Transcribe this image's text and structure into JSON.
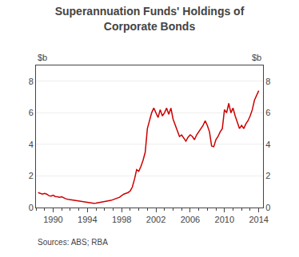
{
  "chart_data": {
    "type": "line",
    "title": "Superannuation Funds' Holdings of\nCorporate Bonds",
    "ylabel": "$b",
    "y2label": "$b",
    "annotations": [
      "Sources: ABS; RBA"
    ],
    "color": "#cc0000",
    "grid": true,
    "xlim": [
      1988.0,
      2014.5
    ],
    "xticks": [
      1990,
      1994,
      1998,
      2002,
      2006,
      2010,
      2014
    ],
    "ylim": [
      0,
      9
    ],
    "yticks": [
      0,
      2,
      4,
      6,
      8
    ],
    "y2lim": [
      0,
      9
    ],
    "y2ticks": [
      0,
      2,
      4,
      6,
      8
    ],
    "x": [
      1988.25,
      1988.5,
      1988.75,
      1989.0,
      1989.25,
      1989.5,
      1989.75,
      1990.0,
      1990.25,
      1990.5,
      1990.75,
      1991.0,
      1991.25,
      1991.5,
      1991.75,
      1992.0,
      1992.25,
      1992.5,
      1992.75,
      1993.0,
      1993.25,
      1993.5,
      1993.75,
      1994.0,
      1994.25,
      1994.5,
      1994.75,
      1995.0,
      1995.25,
      1995.5,
      1995.75,
      1996.0,
      1996.25,
      1996.5,
      1996.75,
      1997.0,
      1997.25,
      1997.5,
      1997.75,
      1998.0,
      1998.25,
      1998.5,
      1998.75,
      1999.0,
      1999.25,
      1999.5,
      1999.75,
      2000.0,
      2000.25,
      2000.5,
      2000.75,
      2001.0,
      2001.25,
      2001.5,
      2001.75,
      2002.0,
      2002.25,
      2002.5,
      2002.75,
      2003.0,
      2003.25,
      2003.5,
      2003.75,
      2004.0,
      2004.25,
      2004.5,
      2004.75,
      2005.0,
      2005.25,
      2005.5,
      2005.75,
      2006.0,
      2006.25,
      2006.5,
      2006.75,
      2007.0,
      2007.25,
      2007.5,
      2007.75,
      2008.0,
      2008.25,
      2008.5,
      2008.75,
      2009.0,
      2009.25,
      2009.5,
      2009.75,
      2010.0,
      2010.25,
      2010.5,
      2010.75,
      2011.0,
      2011.25,
      2011.5,
      2011.75,
      2012.0,
      2012.25,
      2012.5,
      2012.75,
      2013.0,
      2013.25,
      2013.5,
      2013.75,
      2014.0
    ],
    "values": [
      0.95,
      0.9,
      0.85,
      0.9,
      0.85,
      0.75,
      0.72,
      0.78,
      0.7,
      0.68,
      0.65,
      0.68,
      0.6,
      0.55,
      0.52,
      0.5,
      0.48,
      0.45,
      0.42,
      0.4,
      0.38,
      0.35,
      0.33,
      0.32,
      0.3,
      0.28,
      0.27,
      0.28,
      0.3,
      0.32,
      0.35,
      0.38,
      0.4,
      0.42,
      0.45,
      0.5,
      0.55,
      0.6,
      0.65,
      0.75,
      0.85,
      0.9,
      0.95,
      1.05,
      1.3,
      1.8,
      2.4,
      2.3,
      2.6,
      3.0,
      3.5,
      5.0,
      5.5,
      6.0,
      6.3,
      6.0,
      5.7,
      6.2,
      5.8,
      6.0,
      6.3,
      5.9,
      6.3,
      5.6,
      5.2,
      4.8,
      4.5,
      4.6,
      4.4,
      4.2,
      4.45,
      4.6,
      4.5,
      4.3,
      4.6,
      4.8,
      5.0,
      5.2,
      5.5,
      5.2,
      4.8,
      3.9,
      3.85,
      4.3,
      4.5,
      4.8,
      5.0,
      6.2,
      6.0,
      6.6,
      6.0,
      6.3,
      5.8,
      5.4,
      5.0,
      5.2,
      5.0,
      5.3,
      5.5,
      5.8,
      6.2,
      6.8,
      7.1,
      7.4
    ]
  }
}
